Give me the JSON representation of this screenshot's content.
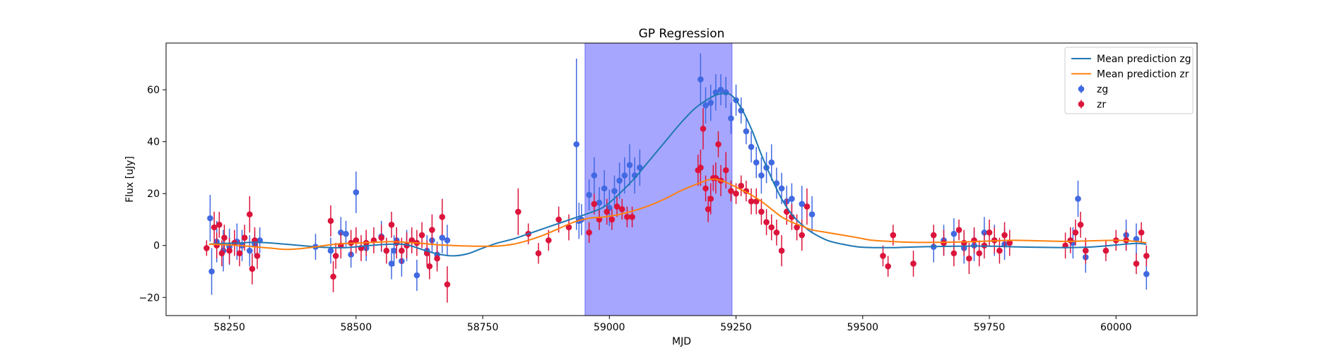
{
  "chart_data": {
    "type": "scatter",
    "title": "GP Regression",
    "xlabel": "MJD",
    "ylabel": "Flux [uJy]",
    "xlim": [
      58125,
      60160
    ],
    "ylim": [
      -27,
      78
    ],
    "xticks": [
      58250,
      58500,
      58750,
      59000,
      59250,
      59500,
      59750,
      60000
    ],
    "yticks": [
      -20,
      0,
      20,
      40,
      60
    ],
    "shaded_region": {
      "x_start": 58952,
      "x_end": 59242,
      "color": "#a6a6ff"
    },
    "legend": {
      "placement": "top-right"
    },
    "series": [
      {
        "name": "Mean prediction zg",
        "kind": "line",
        "color": "#1f77b4",
        "x": [
          58210,
          58240,
          58270,
          58300,
          58330,
          58360,
          58390,
          58420,
          58450,
          58480,
          58510,
          58540,
          58570,
          58600,
          58630,
          58660,
          58690,
          58720,
          58750,
          58780,
          58810,
          58840,
          58870,
          58900,
          58930,
          58960,
          58990,
          59020,
          59050,
          59080,
          59110,
          59140,
          59170,
          59200,
          59220,
          59240,
          59260,
          59280,
          59300,
          59320,
          59340,
          59360,
          59380,
          59400,
          59430,
          59460,
          59490,
          59520,
          59560,
          59600,
          59640,
          59680,
          59720,
          59760,
          59800,
          59850,
          59900,
          59950,
          60000,
          60040,
          60060
        ],
        "y": [
          0.5,
          0.8,
          1.0,
          1.2,
          1.0,
          0.5,
          0.0,
          -0.5,
          -0.8,
          -0.8,
          -0.3,
          0.2,
          0.5,
          0.3,
          -1.5,
          -3.2,
          -4.0,
          -3.2,
          -1.0,
          1.0,
          2.5,
          4.5,
          6.5,
          8.5,
          10.5,
          12.5,
          15.0,
          20.0,
          26.0,
          33.0,
          40.0,
          47.0,
          53.0,
          57.0,
          58.5,
          58.0,
          53.0,
          45.0,
          35.0,
          26.0,
          18.0,
          12.0,
          8.0,
          5.0,
          2.0,
          0.5,
          -0.5,
          -0.8,
          -0.8,
          -0.6,
          -0.4,
          -0.3,
          -0.2,
          -0.3,
          -0.5,
          -0.7,
          -0.8,
          -0.6,
          0.2,
          0.8,
          0.5
        ]
      },
      {
        "name": "Mean prediction zr",
        "kind": "line",
        "color": "#ff7f0e",
        "x": [
          58210,
          58240,
          58270,
          58300,
          58330,
          58360,
          58390,
          58420,
          58450,
          58480,
          58510,
          58540,
          58570,
          58600,
          58630,
          58660,
          58690,
          58720,
          58750,
          58780,
          58810,
          58840,
          58870,
          58900,
          58930,
          58960,
          58990,
          59020,
          59050,
          59080,
          59110,
          59140,
          59170,
          59200,
          59220,
          59240,
          59260,
          59280,
          59300,
          59320,
          59340,
          59360,
          59380,
          59400,
          59430,
          59460,
          59490,
          59520,
          59560,
          59600,
          59640,
          59680,
          59720,
          59760,
          59800,
          59850,
          59900,
          59950,
          60000,
          60040,
          60060
        ],
        "y": [
          0.5,
          0.3,
          0.0,
          -0.5,
          -1.0,
          -1.5,
          -1.2,
          -0.5,
          0.3,
          0.8,
          1.0,
          1.3,
          1.5,
          1.2,
          0.8,
          0.3,
          0.0,
          -0.2,
          -0.3,
          -0.2,
          0.5,
          2.0,
          4.0,
          6.5,
          9.0,
          10.5,
          11.0,
          12.0,
          13.5,
          15.5,
          18.0,
          21.0,
          23.5,
          25.5,
          25.0,
          23.5,
          21.5,
          19.5,
          17.0,
          14.0,
          11.0,
          9.0,
          7.5,
          6.0,
          5.0,
          4.0,
          3.0,
          2.0,
          1.5,
          1.2,
          1.2,
          1.3,
          1.5,
          1.8,
          2.0,
          1.8,
          1.6,
          1.8,
          2.0,
          1.6,
          1.0
        ]
      },
      {
        "name": "zg",
        "kind": "errorbar",
        "color": "#4169e1",
        "x": [
          58212,
          58215,
          58225,
          58238,
          58250,
          58265,
          58275,
          58290,
          58300,
          58310,
          58420,
          58450,
          58470,
          58480,
          58490,
          58500,
          58520,
          58550,
          58570,
          58575,
          58580,
          58590,
          58600,
          58610,
          58620,
          58640,
          58650,
          58660,
          58670,
          58680,
          58935,
          58940,
          58945,
          58960,
          58970,
          58980,
          58990,
          59000,
          59010,
          59020,
          59030,
          59040,
          59050,
          59060,
          59180,
          59190,
          59200,
          59210,
          59220,
          59230,
          59240,
          59250,
          59260,
          59270,
          59280,
          59290,
          59300,
          59310,
          59320,
          59330,
          59340,
          59350,
          59360,
          59380,
          59400,
          59640,
          59660,
          59680,
          59700,
          59720,
          59740,
          59760,
          59780,
          59915,
          59925,
          59940,
          60020,
          60040,
          60060
        ],
        "y": [
          10.5,
          -10,
          1.5,
          -2,
          -0.5,
          1.5,
          0,
          -2,
          0.5,
          2,
          -0.5,
          -2,
          5,
          4.5,
          -3.5,
          20.5,
          -1,
          3.5,
          -7,
          -2,
          2,
          -6,
          0,
          2,
          -11.5,
          -2,
          2,
          -3.5,
          3,
          2,
          39,
          9.5,
          10,
          19.5,
          27,
          16.5,
          22,
          14.5,
          21,
          25,
          27,
          31,
          27,
          30,
          64,
          54,
          55,
          59,
          60,
          59,
          49,
          56,
          52,
          44,
          38,
          32,
          27,
          30,
          32,
          24,
          22,
          17,
          18,
          16,
          12,
          -0.5,
          2,
          4.5,
          -1,
          0,
          5,
          2,
          0.5,
          1,
          18,
          -4.5,
          4,
          2.5,
          -11
        ],
        "err": [
          9,
          9,
          8,
          8,
          7,
          7,
          6,
          6,
          5,
          5,
          5,
          5,
          6,
          5,
          5,
          8,
          5,
          6,
          6,
          6,
          5,
          6,
          6,
          5,
          6,
          6,
          5,
          5,
          6,
          6,
          33,
          7,
          6,
          6,
          7,
          6,
          7,
          7,
          6,
          7,
          7,
          8,
          7,
          7,
          10,
          7,
          7,
          7,
          6,
          6,
          6,
          6,
          5,
          5,
          6,
          6,
          7,
          6,
          7,
          6,
          6,
          6,
          6,
          7,
          7,
          6,
          6,
          6,
          6,
          6,
          6,
          6,
          6,
          6,
          7,
          6,
          6,
          6,
          6
        ]
      },
      {
        "name": "zr",
        "kind": "errorbar",
        "color": "#dc143c",
        "x": [
          58205,
          58220,
          58225,
          58230,
          58235,
          58240,
          58250,
          58260,
          58270,
          58280,
          58290,
          58295,
          58300,
          58305,
          58450,
          58455,
          58460,
          58470,
          58490,
          58500,
          58510,
          58520,
          58535,
          58550,
          58560,
          58570,
          58580,
          58590,
          58600,
          58610,
          58620,
          58630,
          58640,
          58645,
          58650,
          58660,
          58670,
          58680,
          58820,
          58840,
          58860,
          58880,
          58900,
          58920,
          58960,
          58970,
          58980,
          58995,
          59005,
          59015,
          59025,
          59035,
          59045,
          59175,
          59180,
          59185,
          59190,
          59195,
          59200,
          59205,
          59210,
          59215,
          59220,
          59230,
          59240,
          59250,
          59260,
          59270,
          59280,
          59290,
          59300,
          59310,
          59320,
          59330,
          59340,
          59350,
          59360,
          59370,
          59380,
          59390,
          59540,
          59550,
          59560,
          59600,
          59640,
          59660,
          59680,
          59690,
          59700,
          59710,
          59720,
          59730,
          59740,
          59750,
          59760,
          59770,
          59780,
          59790,
          59900,
          59910,
          59920,
          59930,
          59940,
          59980,
          60000,
          60020,
          60040,
          60050,
          60060
        ],
        "y": [
          -1,
          7,
          0,
          8,
          -3,
          3,
          -2,
          1,
          -3,
          3,
          12,
          -9,
          2,
          -4,
          9.5,
          -12,
          -4,
          0,
          1,
          2,
          -1,
          1,
          2,
          3,
          -2,
          8,
          1,
          -2,
          0,
          2,
          1,
          4,
          -3,
          -8,
          6,
          -5,
          11,
          -15,
          13,
          4.5,
          -3,
          2,
          10,
          7,
          5,
          16,
          10,
          13,
          10,
          15,
          14,
          11,
          11,
          29,
          30,
          45,
          22,
          14,
          18,
          26,
          26,
          39,
          25,
          29,
          21,
          20,
          23,
          21,
          17,
          17,
          13,
          9,
          7,
          5,
          -2,
          13,
          11,
          7,
          4,
          15,
          -4,
          -8,
          4,
          -7,
          4,
          1,
          -3,
          6,
          1,
          -5,
          2,
          -3,
          0,
          5,
          2,
          -2,
          4,
          1,
          0,
          2,
          5,
          8,
          -2,
          -2,
          2,
          2,
          -7,
          5,
          -4
        ],
        "err": [
          3,
          6,
          5,
          5,
          5,
          5,
          5,
          5,
          5,
          5,
          7,
          6,
          5,
          5,
          6,
          6,
          5,
          5,
          5,
          5,
          5,
          5,
          5,
          5,
          5,
          5,
          6,
          5,
          5,
          5,
          5,
          5,
          5,
          5,
          6,
          5,
          7,
          7,
          9,
          4,
          4,
          4,
          5,
          5,
          4,
          4,
          4,
          5,
          4,
          4,
          4,
          4,
          4,
          6,
          7,
          8,
          5,
          5,
          6,
          5,
          6,
          5,
          6,
          7,
          4,
          4,
          4,
          4,
          5,
          5,
          5,
          5,
          5,
          5,
          6,
          5,
          5,
          5,
          6,
          7,
          4,
          4,
          4,
          5,
          4,
          5,
          5,
          4,
          5,
          6,
          5,
          5,
          5,
          5,
          5,
          5,
          5,
          5,
          5,
          5,
          5,
          5,
          5,
          4,
          4,
          4,
          4,
          4,
          4
        ]
      }
    ]
  }
}
